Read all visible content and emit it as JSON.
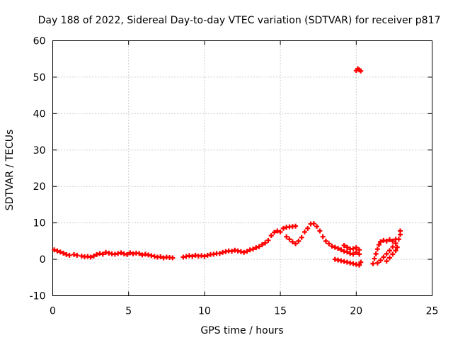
{
  "chart_data": {
    "type": "scatter",
    "title": "Day 188 of 2022, Sidereal Day-to-day VTEC variation (SDTVAR) for receiver p817",
    "xlabel": "GPS time / hours",
    "ylabel": "SDTVAR / TECUs",
    "xlim": [
      0,
      25
    ],
    "ylim": [
      -10,
      60
    ],
    "xticks": [
      "0",
      "5",
      "10",
      "15",
      "20",
      "25"
    ],
    "yticks": [
      "-10",
      "0",
      "10",
      "20",
      "30",
      "40",
      "50",
      "60"
    ],
    "grid": true,
    "marker": "+",
    "colors": {
      "series": "#ff0000",
      "grid": "#a0a0a0",
      "axis": "#000000"
    },
    "series": [
      {
        "name": "SDTVAR",
        "points": [
          [
            0.1,
            2.6
          ],
          [
            0.3,
            2.3
          ],
          [
            0.5,
            2.0
          ],
          [
            0.7,
            1.7
          ],
          [
            0.9,
            1.3
          ],
          [
            1.1,
            1.1
          ],
          [
            1.4,
            1.3
          ],
          [
            1.6,
            1.1
          ],
          [
            1.9,
            0.9
          ],
          [
            2.1,
            0.7
          ],
          [
            2.3,
            0.8
          ],
          [
            2.5,
            0.6
          ],
          [
            2.7,
            0.9
          ],
          [
            2.9,
            1.3
          ],
          [
            3.1,
            1.6
          ],
          [
            3.3,
            1.4
          ],
          [
            3.5,
            1.9
          ],
          [
            3.7,
            1.7
          ],
          [
            3.9,
            1.5
          ],
          [
            4.1,
            1.4
          ],
          [
            4.3,
            1.6
          ],
          [
            4.5,
            1.8
          ],
          [
            4.7,
            1.5
          ],
          [
            4.9,
            1.3
          ],
          [
            5.1,
            1.8
          ],
          [
            5.3,
            1.5
          ],
          [
            5.5,
            1.7
          ],
          [
            5.7,
            1.6
          ],
          [
            5.9,
            1.2
          ],
          [
            6.1,
            1.4
          ],
          [
            6.3,
            1.2
          ],
          [
            6.5,
            1.0
          ],
          [
            6.7,
            0.8
          ],
          [
            6.9,
            0.6
          ],
          [
            7.1,
            0.7
          ],
          [
            7.3,
            0.4
          ],
          [
            7.5,
            0.6
          ],
          [
            7.7,
            0.5
          ],
          [
            7.9,
            0.4
          ],
          [
            8.6,
            0.6
          ],
          [
            8.8,
            0.8
          ],
          [
            9.0,
            1.0
          ],
          [
            9.2,
            0.8
          ],
          [
            9.4,
            1.1
          ],
          [
            9.6,
            0.9
          ],
          [
            9.8,
            1.0
          ],
          [
            10.0,
            0.8
          ],
          [
            10.2,
            1.1
          ],
          [
            10.4,
            1.3
          ],
          [
            10.6,
            1.4
          ],
          [
            10.8,
            1.6
          ],
          [
            11.0,
            1.6
          ],
          [
            11.2,
            1.9
          ],
          [
            11.4,
            2.1
          ],
          [
            11.6,
            2.3
          ],
          [
            11.8,
            2.2
          ],
          [
            12.0,
            2.5
          ],
          [
            12.2,
            2.3
          ],
          [
            12.4,
            2.1
          ],
          [
            12.6,
            1.9
          ],
          [
            12.8,
            2.2
          ],
          [
            13.0,
            2.6
          ],
          [
            13.2,
            2.8
          ],
          [
            13.4,
            3.2
          ],
          [
            13.6,
            3.5
          ],
          [
            13.8,
            4.0
          ],
          [
            14.0,
            4.5
          ],
          [
            14.2,
            5.2
          ],
          [
            14.4,
            6.5
          ],
          [
            14.6,
            7.4
          ],
          [
            14.8,
            7.8
          ],
          [
            15.0,
            7.5
          ],
          [
            15.2,
            8.5
          ],
          [
            15.4,
            8.8
          ],
          [
            15.6,
            8.9
          ],
          [
            15.8,
            9.0
          ],
          [
            16.0,
            9.1
          ],
          [
            15.4,
            6.2
          ],
          [
            15.6,
            5.5
          ],
          [
            15.8,
            4.8
          ],
          [
            16.0,
            4.3
          ],
          [
            16.2,
            5.0
          ],
          [
            16.4,
            6.0
          ],
          [
            16.6,
            7.5
          ],
          [
            16.8,
            8.5
          ],
          [
            17.0,
            9.7
          ],
          [
            17.2,
            9.8
          ],
          [
            17.4,
            9.0
          ],
          [
            17.6,
            7.8
          ],
          [
            17.8,
            6.2
          ],
          [
            18.0,
            5.0
          ],
          [
            18.2,
            4.3
          ],
          [
            18.4,
            3.6
          ],
          [
            18.6,
            3.3
          ],
          [
            18.8,
            3.0
          ],
          [
            19.0,
            2.6
          ],
          [
            19.2,
            2.2
          ],
          [
            19.4,
            2.0
          ],
          [
            19.6,
            1.6
          ],
          [
            19.8,
            1.4
          ],
          [
            20.0,
            1.9
          ],
          [
            20.2,
            1.4
          ],
          [
            19.2,
            3.8
          ],
          [
            19.4,
            3.3
          ],
          [
            19.6,
            2.8
          ],
          [
            19.8,
            2.9
          ],
          [
            20.0,
            3.2
          ],
          [
            20.2,
            2.6
          ],
          [
            18.6,
            0.0
          ],
          [
            18.8,
            -0.2
          ],
          [
            19.0,
            -0.4
          ],
          [
            19.2,
            -0.6
          ],
          [
            19.4,
            -0.8
          ],
          [
            19.6,
            -1.0
          ],
          [
            19.8,
            -1.2
          ],
          [
            20.0,
            -1.4
          ],
          [
            20.2,
            -1.6
          ],
          [
            20.3,
            -0.8
          ],
          [
            21.1,
            -1.2
          ],
          [
            21.2,
            0.2
          ],
          [
            21.3,
            1.5
          ],
          [
            21.4,
            2.8
          ],
          [
            21.5,
            4.0
          ],
          [
            21.6,
            4.8
          ],
          [
            21.8,
            5.2
          ],
          [
            22.0,
            5.0
          ],
          [
            22.2,
            5.4
          ],
          [
            22.4,
            5.0
          ],
          [
            22.6,
            5.5
          ],
          [
            21.4,
            -1.0
          ],
          [
            21.6,
            -0.3
          ],
          [
            21.8,
            0.6
          ],
          [
            22.0,
            1.5
          ],
          [
            22.2,
            2.4
          ],
          [
            22.4,
            3.4
          ],
          [
            22.6,
            4.4
          ],
          [
            22.8,
            5.5
          ],
          [
            22.9,
            6.8
          ],
          [
            22.9,
            7.8
          ],
          [
            22.0,
            -0.5
          ],
          [
            22.2,
            0.4
          ],
          [
            22.4,
            1.4
          ],
          [
            22.6,
            2.4
          ],
          [
            22.7,
            3.3
          ],
          [
            20.0,
            51.8
          ],
          [
            20.1,
            52.3
          ],
          [
            20.2,
            52.0
          ],
          [
            20.3,
            51.7
          ]
        ]
      }
    ]
  }
}
